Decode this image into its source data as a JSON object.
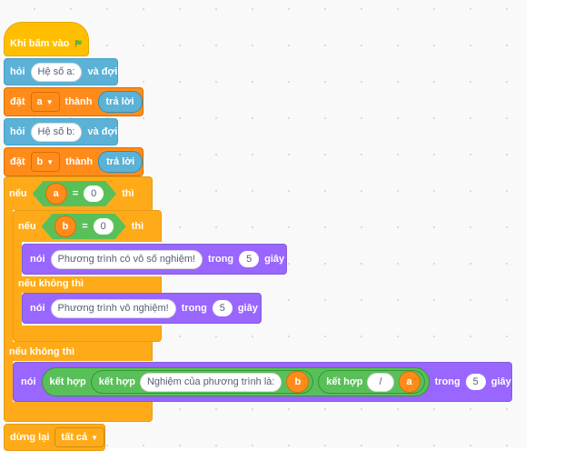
{
  "script": {
    "when_flag": "Khi bấm vào",
    "ask1": {
      "word": "hỏi",
      "prompt": "Hệ số a:",
      "tail": "và đợi"
    },
    "set1": {
      "word": "đặt",
      "var": "a",
      "to": "thành",
      "answer": "trả lời"
    },
    "ask2": {
      "word": "hỏi",
      "prompt": "Hệ số b:",
      "tail": "và đợi"
    },
    "set2": {
      "word": "đặt",
      "var": "b",
      "to": "thành",
      "answer": "trả lời"
    },
    "if1": {
      "word": "nếu",
      "left": "a",
      "op": "=",
      "right": "0",
      "then": "thì"
    },
    "if2": {
      "word": "nếu",
      "left": "b",
      "op": "=",
      "right": "0",
      "then": "thì"
    },
    "say1": {
      "word": "nói",
      "text": "Phương trình có vô số nghiệm!",
      "for": "trong",
      "secs": "5",
      "unit": "giây"
    },
    "else2": "nếu không thì",
    "say2": {
      "word": "nói",
      "text": "Phương trình vô nghiệm!",
      "for": "trong",
      "secs": "5",
      "unit": "giây"
    },
    "else1": "nếu không thì",
    "say3": {
      "word": "nói",
      "join": "kết hợp",
      "text": "Nghiệm của phương trình là:",
      "b": "b",
      "slash": "/",
      "a": "a",
      "for": "trong",
      "secs": "5",
      "unit": "giây"
    },
    "stop": {
      "word": "dừng lại",
      "option": "tất cả"
    }
  },
  "colors": {
    "events": "#ffbf00",
    "sensing": "#5cb1d6",
    "variables": "#ff8c1a",
    "control": "#ffab19",
    "looks": "#9966ff",
    "operators": "#59c059"
  }
}
